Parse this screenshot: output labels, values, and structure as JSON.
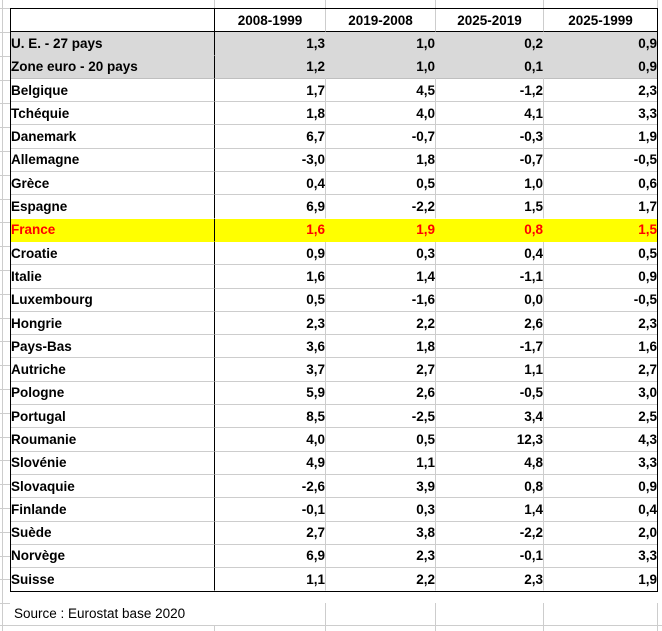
{
  "colors": {
    "highlight_bg": "#ffff00",
    "highlight_text": "#ff0000",
    "aggregate_bg": "#d9d9d9",
    "table_border": "#000000",
    "gridline": "#cdcdcd"
  },
  "chart_data": {
    "type": "table",
    "title": "",
    "columns": [
      "2008-1999",
      "2019-2008",
      "2025-2019",
      "2025-1999"
    ],
    "decimal_separator": ",",
    "rows": [
      {
        "label": "U. E. - 27 pays",
        "values": [
          1.3,
          1.0,
          0.2,
          0.9
        ],
        "style": "aggregate"
      },
      {
        "label": "Zone euro - 20 pays",
        "values": [
          1.2,
          1.0,
          0.1,
          0.9
        ],
        "style": "aggregate"
      },
      {
        "label": "Belgique",
        "values": [
          1.7,
          4.5,
          -1.2,
          2.3
        ],
        "style": "normal"
      },
      {
        "label": "Tchéquie",
        "values": [
          1.8,
          4.0,
          4.1,
          3.3
        ],
        "style": "normal"
      },
      {
        "label": "Danemark",
        "values": [
          6.7,
          -0.7,
          -0.3,
          1.9
        ],
        "style": "normal"
      },
      {
        "label": "Allemagne",
        "values": [
          -3.0,
          1.8,
          -0.7,
          -0.5
        ],
        "style": "normal"
      },
      {
        "label": "Grèce",
        "values": [
          0.4,
          0.5,
          1.0,
          0.6
        ],
        "style": "normal"
      },
      {
        "label": "Espagne",
        "values": [
          6.9,
          -2.2,
          1.5,
          1.7
        ],
        "style": "normal"
      },
      {
        "label": "France",
        "values": [
          1.6,
          1.9,
          0.8,
          1.5
        ],
        "style": "highlight"
      },
      {
        "label": "Croatie",
        "values": [
          0.9,
          0.3,
          0.4,
          0.5
        ],
        "style": "normal"
      },
      {
        "label": "Italie",
        "values": [
          1.6,
          1.4,
          -1.1,
          0.9
        ],
        "style": "normal"
      },
      {
        "label": "Luxembourg",
        "values": [
          0.5,
          -1.6,
          0.0,
          -0.5
        ],
        "style": "normal"
      },
      {
        "label": "Hongrie",
        "values": [
          2.3,
          2.2,
          2.6,
          2.3
        ],
        "style": "normal"
      },
      {
        "label": "Pays-Bas",
        "values": [
          3.6,
          1.8,
          -1.7,
          1.6
        ],
        "style": "normal"
      },
      {
        "label": "Autriche",
        "values": [
          3.7,
          2.7,
          1.1,
          2.7
        ],
        "style": "normal"
      },
      {
        "label": "Pologne",
        "values": [
          5.9,
          2.6,
          -0.5,
          3.0
        ],
        "style": "normal"
      },
      {
        "label": "Portugal",
        "values": [
          8.5,
          -2.5,
          3.4,
          2.5
        ],
        "style": "normal"
      },
      {
        "label": "Roumanie",
        "values": [
          4.0,
          0.5,
          12.3,
          4.3
        ],
        "style": "normal"
      },
      {
        "label": "Slovénie",
        "values": [
          4.9,
          1.1,
          4.8,
          3.3
        ],
        "style": "normal"
      },
      {
        "label": "Slovaquie",
        "values": [
          -2.6,
          3.9,
          0.8,
          0.9
        ],
        "style": "normal"
      },
      {
        "label": "Finlande",
        "values": [
          -0.1,
          0.3,
          1.4,
          0.4
        ],
        "style": "normal"
      },
      {
        "label": "Suède",
        "values": [
          2.7,
          3.8,
          -2.2,
          2.0
        ],
        "style": "normal"
      },
      {
        "label": "Norvège",
        "values": [
          6.9,
          2.3,
          -0.1,
          3.3
        ],
        "style": "normal"
      },
      {
        "label": "Suisse",
        "values": [
          1.1,
          2.2,
          2.3,
          1.9
        ],
        "style": "normal"
      }
    ],
    "source": "Source : Eurostat base 2020"
  }
}
